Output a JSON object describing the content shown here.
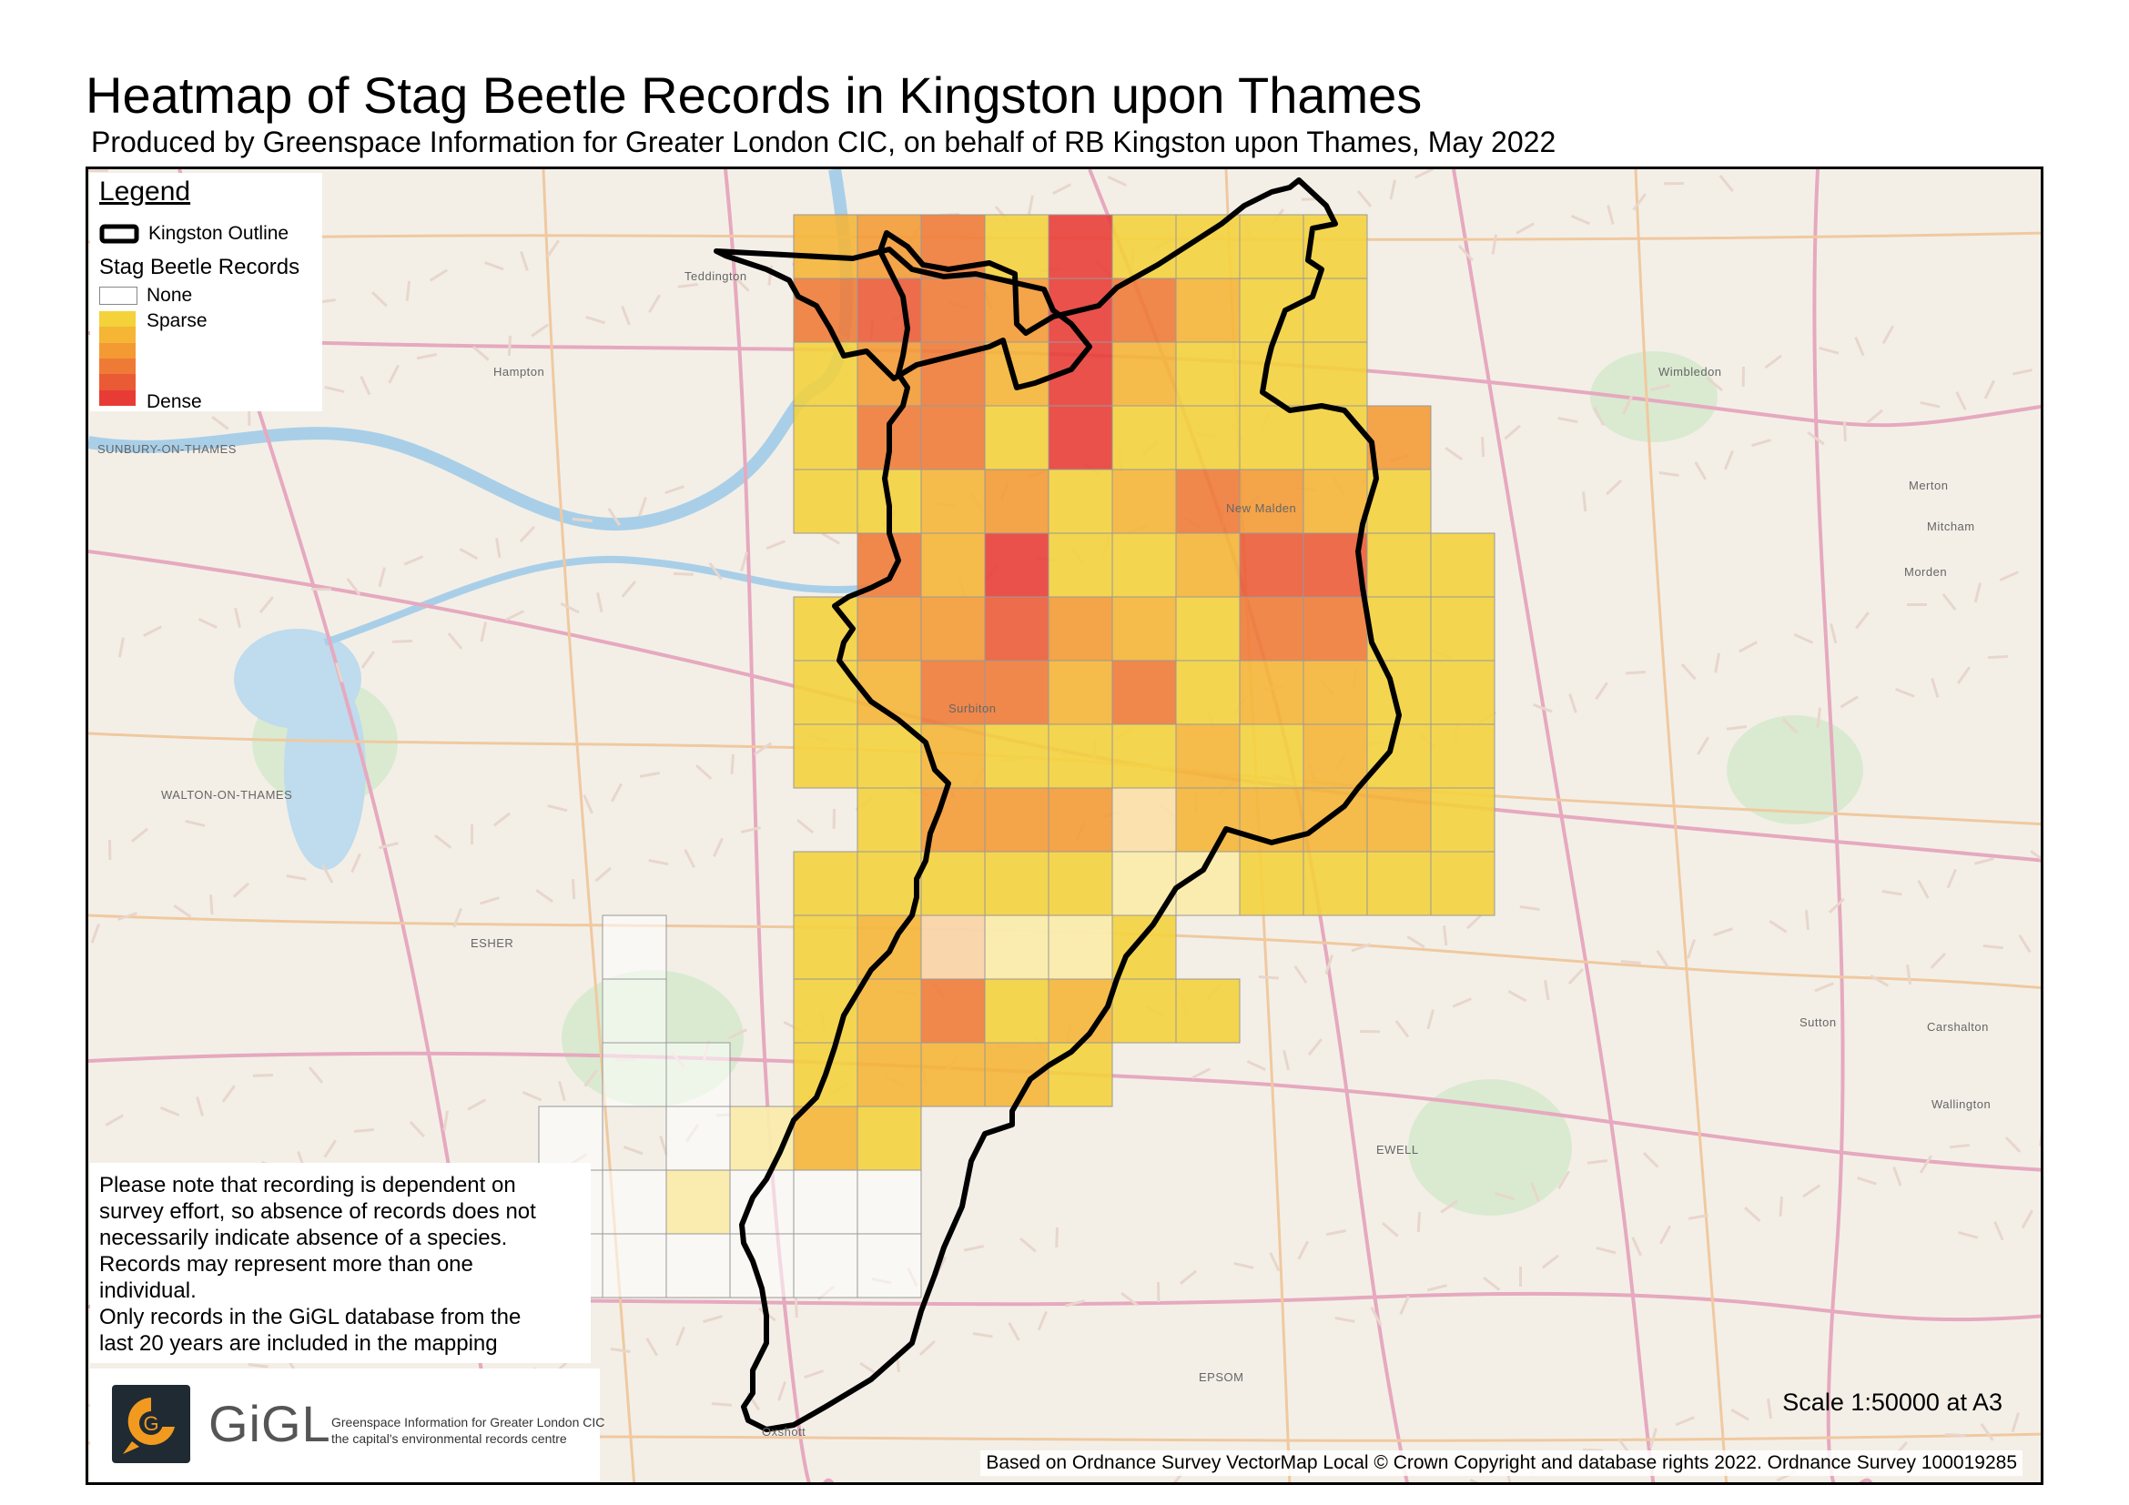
{
  "title": "Heatmap of Stag Beetle Records in Kingston upon Thames",
  "subtitle": "Produced by Greenspace Information for Greater London CIC, on behalf of RB Kingston upon Thames, May 2022",
  "legend": {
    "title": "Legend",
    "outline_label": "Kingston Outline",
    "records_title": "Stag Beetle Records",
    "none_label": "None",
    "sparse_label": "Sparse",
    "dense_label": "Dense",
    "ramp_colors": [
      "#f4d23a",
      "#f5b535",
      "#f49a33",
      "#ef7a35",
      "#ea5a35",
      "#e83b36"
    ]
  },
  "note": {
    "lines": [
      "Please note that recording is dependent on",
      "survey effort, so absence of records does not",
      "necessarily indicate absence of a species.",
      "Records may represent more than one",
      "individual.",
      "Only records in the GiGL database from the",
      "last 20 years are included in the mapping"
    ]
  },
  "logo": {
    "name": "GiGL",
    "line1": "Greenspace Information for Greater London CIC",
    "line2": "the capital's environmental records centre"
  },
  "scale_text": "Scale 1:50000 at A3",
  "copyright": "Based on Ordnance Survey VectorMap Local © Crown Copyright and database rights 2022. Ordnance Survey 100019285",
  "place_labels": [
    "Teddington",
    "Hampton",
    "SUNBURY-ON-THAMES",
    "WALTON-ON-THAMES",
    "ESHER",
    "Wimbledon",
    "Merton",
    "Mitcham",
    "Morden",
    "Sutton",
    "Carshalton",
    "Wallington",
    "EWELL",
    "EPSOM",
    "Oxshott",
    "New Malden",
    "Surbiton"
  ],
  "heat_levels_by_row": [
    [
      1,
      2,
      3,
      0,
      5,
      0,
      0,
      0,
      0,
      null
    ],
    [
      3,
      4,
      3,
      2,
      5,
      3,
      1,
      0,
      0,
      null
    ],
    [
      0,
      2,
      3,
      1,
      5,
      1,
      0,
      0,
      0,
      null
    ],
    [
      0,
      3,
      3,
      0,
      5,
      0,
      0,
      0,
      0,
      2
    ],
    [
      0,
      0,
      1,
      2,
      0,
      1,
      3,
      2,
      1,
      0
    ],
    [
      null,
      3,
      1,
      5,
      0,
      0,
      1,
      4,
      4,
      0,
      0
    ],
    [
      0,
      2,
      2,
      4,
      2,
      1,
      0,
      3,
      3,
      0,
      0
    ],
    [
      0,
      1,
      3,
      3,
      1,
      3,
      0,
      1,
      1,
      0,
      0
    ],
    [
      0,
      0,
      1,
      0,
      0,
      0,
      1,
      0,
      1,
      0,
      0
    ],
    [
      null,
      0,
      2,
      2,
      2,
      1,
      1,
      1,
      1,
      1,
      0
    ],
    [
      0,
      0,
      0,
      0,
      0,
      0,
      0,
      0,
      0,
      0,
      0
    ],
    [
      0,
      1,
      2,
      0,
      0,
      0
    ],
    [
      0,
      1,
      3,
      0,
      1,
      0,
      0
    ],
    [
      0,
      1,
      1,
      1,
      0
    ],
    [
      0,
      1,
      0
    ],
    [
      0
    ]
  ]
}
